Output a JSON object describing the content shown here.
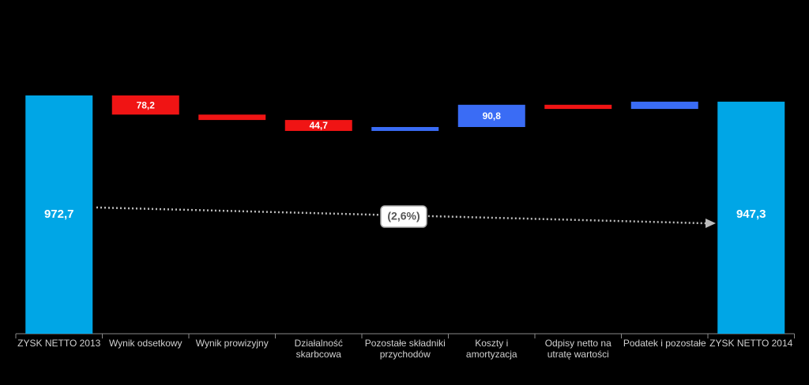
{
  "chart_data": {
    "type": "waterfall",
    "categories": [
      "ZYSK NETTO 2013",
      "Wynik odsetkowy",
      "Wynik prowizyjny",
      "Działalność skarbcowa",
      "Pozostałe składniki przychodów",
      "Koszty i amortyzacja",
      "Odpisy netto na utratę wartości",
      "Podatek i pozostałe",
      "ZYSK NETTO 2014"
    ],
    "values": [
      972.7,
      -78.2,
      -22,
      -44.7,
      16,
      90.8,
      -17,
      29.7,
      947.3
    ],
    "value_labels": [
      "972,7",
      "78,2",
      null,
      "44,7",
      null,
      "90,8",
      null,
      null,
      "947,3"
    ],
    "totals": [
      true,
      false,
      false,
      false,
      false,
      false,
      false,
      false,
      true
    ],
    "colors": {
      "total": "#00a6e6",
      "increase": "#3a6cf5",
      "decrease": "#f01414"
    },
    "ylim": [
      0,
      1000
    ],
    "annotation": "(2,6%)"
  }
}
